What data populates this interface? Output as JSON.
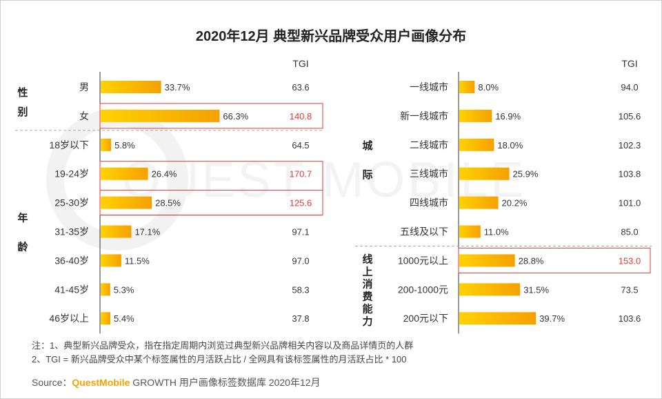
{
  "title": "2020年12月 典型新兴品牌受众用户画像分布",
  "watermark": "QUEST MOBILE",
  "colors": {
    "bar_start": "#FFD200",
    "bar_end": "#F5A000",
    "highlight": "#E53935",
    "divider": "#AAAAAA"
  },
  "notes": [
    "注：1、典型新兴品牌受众，指在指定周期内浏览过典型新兴品牌相关内容以及商品详情页的人群",
    "2、TGI = 新兴品牌受众中某个标签属性的月活跃占比 / 全网具有该标签属性的月活跃占比 * 100"
  ],
  "source": {
    "prefix": "Source：",
    "brand": "QuestMobile",
    "text": " GROWTH 用户画像标签数据库 2020年12月"
  },
  "chart_data": [
    {
      "type": "bar",
      "tgi_header": "TGI",
      "value_unit": "%",
      "groups": [
        {
          "label": "性别",
          "categories": [
            "男",
            "女"
          ],
          "values": [
            33.7,
            66.3
          ],
          "tgi": [
            63.6,
            140.8
          ],
          "highlighted": [
            "女"
          ]
        },
        {
          "label": "年龄",
          "categories": [
            "18岁以下",
            "19-24岁",
            "25-30岁",
            "31-35岁",
            "36-40岁",
            "41-45岁",
            "46岁以上"
          ],
          "values": [
            5.8,
            26.4,
            28.5,
            17.1,
            11.5,
            5.3,
            5.4
          ],
          "tgi": [
            64.5,
            170.7,
            125.6,
            97.1,
            97.0,
            58.3,
            37.8
          ],
          "highlighted": [
            "19-24岁",
            "25-30岁"
          ]
        }
      ]
    },
    {
      "type": "bar",
      "tgi_header": "TGI",
      "value_unit": "%",
      "groups": [
        {
          "label": "城际",
          "categories": [
            "一线城市",
            "新一线城市",
            "二线城市",
            "三线城市",
            "四线城市",
            "五线及以下"
          ],
          "values": [
            8.0,
            16.9,
            18.0,
            25.9,
            20.2,
            11.0
          ],
          "tgi": [
            94.0,
            105.6,
            102.3,
            103.8,
            101.0,
            85.0
          ],
          "highlighted": []
        },
        {
          "label": "线上消费能力",
          "categories": [
            "1000元以上",
            "200-1000元",
            "200元以下"
          ],
          "values": [
            28.8,
            31.5,
            39.7
          ],
          "tgi": [
            153.0,
            73.5,
            103.6
          ],
          "highlighted": [
            "1000元以上"
          ]
        }
      ]
    }
  ]
}
